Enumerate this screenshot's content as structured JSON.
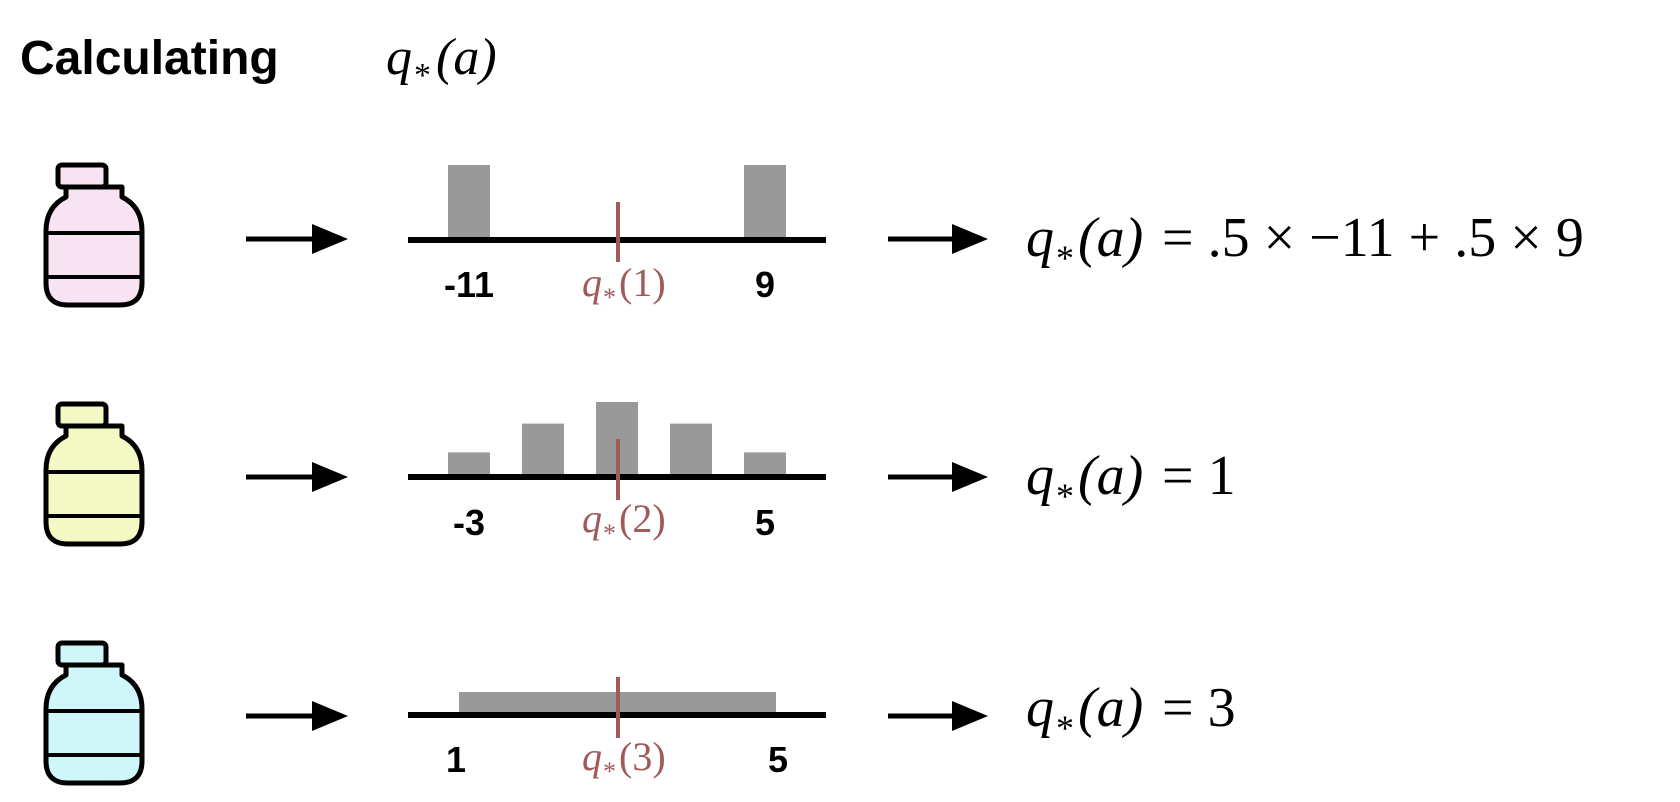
{
  "title": {
    "word": "Calculating",
    "q": "q",
    "star": "*",
    "arg": "(a)"
  },
  "colors": {
    "ink": "#000000",
    "bar": "#999999",
    "marker": "#a05a5a",
    "bottle_1": "#f7e3f1",
    "bottle_2": "#f3f8c4",
    "bottle_3": "#cff6f9"
  },
  "rows": [
    {
      "bottle_icon": "pink-bottle-icon",
      "bar_values": [
        1,
        0,
        0,
        0,
        1
      ],
      "bar_style": "discrete",
      "tick_left": "-11",
      "tick_right": "9",
      "marker_q": "q",
      "marker_star": "*",
      "marker_arg": "(1)",
      "result_lhs_q": "q",
      "result_lhs_star": "*",
      "result_lhs_arg": "(a)",
      "result_rhs": "= .5 × −11 + .5 × 9"
    },
    {
      "bottle_icon": "yellow-bottle-icon",
      "bar_values": [
        0.3,
        0.7,
        1,
        0.7,
        0.3
      ],
      "bar_style": "discrete",
      "tick_left": "-3",
      "tick_right": "5",
      "marker_q": "q",
      "marker_star": "*",
      "marker_arg": "(2)",
      "result_lhs_q": "q",
      "result_lhs_star": "*",
      "result_lhs_arg": "(a)",
      "result_rhs": "= 1"
    },
    {
      "bottle_icon": "blue-bottle-icon",
      "bar_values": [
        1
      ],
      "bar_style": "uniform",
      "tick_left": "1",
      "tick_right": "5",
      "marker_q": "q",
      "marker_star": "*",
      "marker_arg": "(3)",
      "result_lhs_q": "q",
      "result_lhs_star": "*",
      "result_lhs_arg": "(a)",
      "result_rhs": "= 3"
    }
  ]
}
